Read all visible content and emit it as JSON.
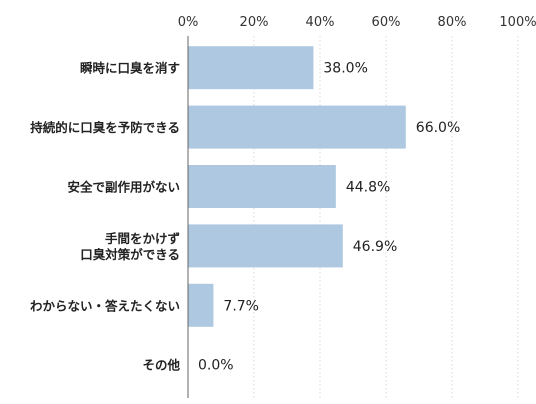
{
  "chart_data": {
    "type": "bar",
    "orientation": "horizontal",
    "categories": [
      [
        "瞬時に口臭を消す"
      ],
      [
        "持続的に口臭を予防できる"
      ],
      [
        "安全で副作用がない"
      ],
      [
        "手間をかけず",
        "口臭対策ができる"
      ],
      [
        "わからない・答えたくない"
      ],
      [
        "その他"
      ]
    ],
    "values": [
      38.0,
      66.0,
      44.8,
      46.9,
      7.7,
      0.0
    ],
    "value_labels": [
      "38.0%",
      "66.0%",
      "44.8%",
      "46.9%",
      "7.7%",
      "0.0%"
    ],
    "x_ticks": [
      "0%",
      "20%",
      "40%",
      "60%",
      "80%",
      "100%"
    ],
    "xlim": [
      0,
      100
    ],
    "x_axis_position": "top",
    "grid": true,
    "colors": {
      "bar": "#adc8e0",
      "grid": "#d8d8d8",
      "axis": "#666666"
    }
  }
}
